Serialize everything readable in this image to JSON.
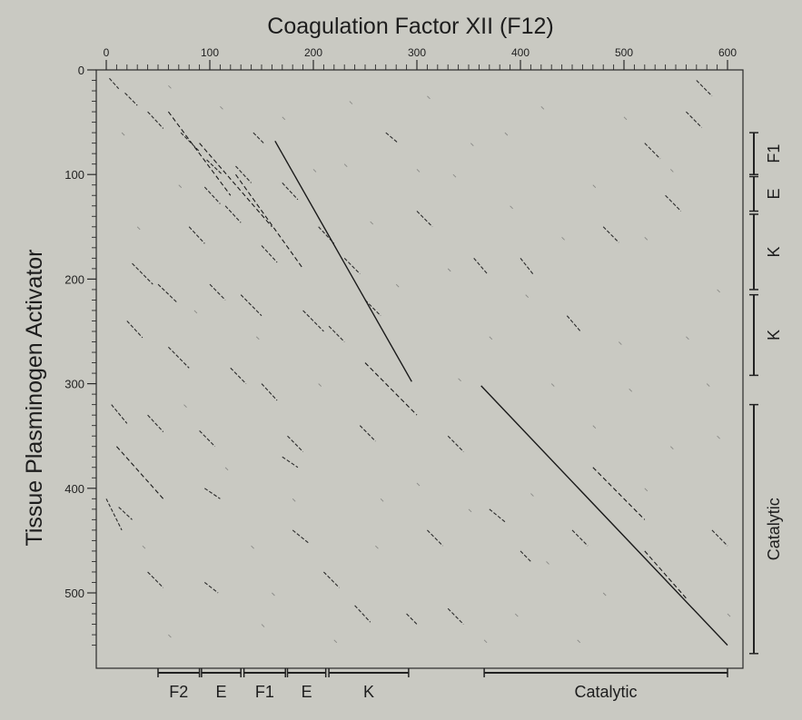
{
  "chart_data": {
    "type": "scatter",
    "subtype": "dot-plot",
    "title": "Coagulation Factor XII  (F12)",
    "xlabel": "",
    "ylabel": "Tissue Plasminogen Activator",
    "xlim": [
      0,
      610
    ],
    "ylim": [
      560,
      0
    ],
    "x_ticks": [
      0,
      100,
      200,
      300,
      400,
      500,
      600
    ],
    "y_ticks": [
      0,
      100,
      200,
      300,
      400,
      500
    ],
    "grid": false,
    "x_domains": [
      {
        "label": "F2",
        "start": 50,
        "end": 90
      },
      {
        "label": "E",
        "start": 92,
        "end": 130
      },
      {
        "label": "F1",
        "start": 133,
        "end": 173
      },
      {
        "label": "E",
        "start": 175,
        "end": 212
      },
      {
        "label": "K",
        "start": 215,
        "end": 292
      },
      {
        "label": "Catalytic",
        "start": 365,
        "end": 600
      }
    ],
    "y_domains": [
      {
        "label": "F1",
        "start": 60,
        "end": 100
      },
      {
        "label": "E",
        "start": 102,
        "end": 135
      },
      {
        "label": "K",
        "start": 138,
        "end": 210
      },
      {
        "label": "K",
        "start": 215,
        "end": 292
      },
      {
        "label": "Catalytic",
        "start": 320,
        "end": 558
      }
    ],
    "diagonals": [
      {
        "x": [
          163,
          295
        ],
        "y": [
          68,
          298
        ]
      },
      {
        "x": [
          362,
          600
        ],
        "y": [
          302,
          550
        ]
      },
      {
        "x": [
          125,
          190
        ],
        "y": [
          100,
          190
        ]
      },
      {
        "x": [
          90,
          160
        ],
        "y": [
          70,
          150
        ]
      },
      {
        "x": [
          60,
          120
        ],
        "y": [
          40,
          120
        ]
      },
      {
        "x": [
          250,
          300
        ],
        "y": [
          280,
          330
        ]
      },
      {
        "x": [
          520,
          560
        ],
        "y": [
          460,
          505
        ]
      },
      {
        "x": [
          470,
          520
        ],
        "y": [
          380,
          430
        ]
      },
      {
        "x": [
          10,
          55
        ],
        "y": [
          360,
          410
        ]
      }
    ],
    "segments": [
      {
        "x": [
          3,
          12
        ],
        "y": [
          8,
          18
        ]
      },
      {
        "x": [
          18,
          30
        ],
        "y": [
          22,
          34
        ]
      },
      {
        "x": [
          40,
          55
        ],
        "y": [
          40,
          56
        ]
      },
      {
        "x": [
          72,
          90
        ],
        "y": [
          60,
          78
        ]
      },
      {
        "x": [
          97,
          112
        ],
        "y": [
          86,
          100
        ]
      },
      {
        "x": [
          125,
          140
        ],
        "y": [
          92,
          108
        ]
      },
      {
        "x": [
          142,
          152
        ],
        "y": [
          60,
          70
        ]
      },
      {
        "x": [
          95,
          110
        ],
        "y": [
          112,
          128
        ]
      },
      {
        "x": [
          115,
          130
        ],
        "y": [
          130,
          146
        ]
      },
      {
        "x": [
          170,
          185
        ],
        "y": [
          108,
          124
        ]
      },
      {
        "x": [
          205,
          220
        ],
        "y": [
          150,
          166
        ]
      },
      {
        "x": [
          150,
          165
        ],
        "y": [
          168,
          184
        ]
      },
      {
        "x": [
          80,
          95
        ],
        "y": [
          150,
          166
        ]
      },
      {
        "x": [
          25,
          45
        ],
        "y": [
          185,
          205
        ]
      },
      {
        "x": [
          50,
          68
        ],
        "y": [
          205,
          222
        ]
      },
      {
        "x": [
          100,
          115
        ],
        "y": [
          205,
          220
        ]
      },
      {
        "x": [
          130,
          150
        ],
        "y": [
          215,
          235
        ]
      },
      {
        "x": [
          190,
          210
        ],
        "y": [
          230,
          250
        ]
      },
      {
        "x": [
          215,
          230
        ],
        "y": [
          245,
          260
        ]
      },
      {
        "x": [
          230,
          245
        ],
        "y": [
          180,
          195
        ]
      },
      {
        "x": [
          250,
          265
        ],
        "y": [
          220,
          235
        ]
      },
      {
        "x": [
          20,
          35
        ],
        "y": [
          240,
          256
        ]
      },
      {
        "x": [
          60,
          80
        ],
        "y": [
          265,
          285
        ]
      },
      {
        "x": [
          120,
          135
        ],
        "y": [
          285,
          300
        ]
      },
      {
        "x": [
          150,
          165
        ],
        "y": [
          300,
          316
        ]
      },
      {
        "x": [
          5,
          20
        ],
        "y": [
          320,
          338
        ]
      },
      {
        "x": [
          40,
          55
        ],
        "y": [
          330,
          346
        ]
      },
      {
        "x": [
          90,
          105
        ],
        "y": [
          345,
          360
        ]
      },
      {
        "x": [
          175,
          190
        ],
        "y": [
          350,
          365
        ]
      },
      {
        "x": [
          245,
          260
        ],
        "y": [
          340,
          355
        ]
      },
      {
        "x": [
          330,
          345
        ],
        "y": [
          350,
          365
        ]
      },
      {
        "x": [
          0,
          15
        ],
        "y": [
          410,
          440
        ]
      },
      {
        "x": [
          12,
          25
        ],
        "y": [
          418,
          430
        ]
      },
      {
        "x": [
          95,
          110
        ],
        "y": [
          400,
          410
        ]
      },
      {
        "x": [
          180,
          195
        ],
        "y": [
          440,
          452
        ]
      },
      {
        "x": [
          170,
          185
        ],
        "y": [
          370,
          380
        ]
      },
      {
        "x": [
          210,
          225
        ],
        "y": [
          480,
          495
        ]
      },
      {
        "x": [
          240,
          255
        ],
        "y": [
          512,
          528
        ]
      },
      {
        "x": [
          310,
          325
        ],
        "y": [
          440,
          455
        ]
      },
      {
        "x": [
          330,
          345
        ],
        "y": [
          515,
          530
        ]
      },
      {
        "x": [
          40,
          55
        ],
        "y": [
          480,
          495
        ]
      },
      {
        "x": [
          95,
          108
        ],
        "y": [
          490,
          500
        ]
      },
      {
        "x": [
          400,
          412
        ],
        "y": [
          180,
          195
        ]
      },
      {
        "x": [
          445,
          458
        ],
        "y": [
          235,
          250
        ]
      },
      {
        "x": [
          400,
          410
        ],
        "y": [
          460,
          470
        ]
      },
      {
        "x": [
          450,
          465
        ],
        "y": [
          440,
          455
        ]
      },
      {
        "x": [
          570,
          585
        ],
        "y": [
          10,
          25
        ]
      },
      {
        "x": [
          560,
          575
        ],
        "y": [
          40,
          55
        ]
      },
      {
        "x": [
          520,
          535
        ],
        "y": [
          70,
          85
        ]
      },
      {
        "x": [
          540,
          555
        ],
        "y": [
          120,
          135
        ]
      },
      {
        "x": [
          480,
          495
        ],
        "y": [
          150,
          165
        ]
      },
      {
        "x": [
          370,
          385
        ],
        "y": [
          420,
          432
        ]
      },
      {
        "x": [
          585,
          600
        ],
        "y": [
          440,
          455
        ]
      },
      {
        "x": [
          270,
          282
        ],
        "y": [
          60,
          70
        ]
      },
      {
        "x": [
          300,
          315
        ],
        "y": [
          135,
          150
        ]
      },
      {
        "x": [
          355,
          368
        ],
        "y": [
          180,
          195
        ]
      },
      {
        "x": [
          290,
          300
        ],
        "y": [
          520,
          530
        ]
      }
    ],
    "speckles": [
      [
        60,
        15
      ],
      [
        110,
        35
      ],
      [
        170,
        45
      ],
      [
        235,
        30
      ],
      [
        310,
        25
      ],
      [
        352,
        70
      ],
      [
        420,
        35
      ],
      [
        500,
        45
      ],
      [
        545,
        95
      ],
      [
        470,
        110
      ],
      [
        390,
        130
      ],
      [
        330,
        190
      ],
      [
        280,
        205
      ],
      [
        370,
        255
      ],
      [
        430,
        300
      ],
      [
        505,
        305
      ],
      [
        580,
        300
      ],
      [
        590,
        210
      ],
      [
        300,
        395
      ],
      [
        350,
        420
      ],
      [
        260,
        455
      ],
      [
        140,
        455
      ],
      [
        60,
        540
      ],
      [
        150,
        530
      ],
      [
        220,
        545
      ],
      [
        395,
        520
      ],
      [
        455,
        545
      ],
      [
        520,
        400
      ],
      [
        590,
        350
      ],
      [
        410,
        405
      ],
      [
        70,
        110
      ],
      [
        30,
        150
      ],
      [
        200,
        95
      ],
      [
        145,
        255
      ],
      [
        205,
        300
      ],
      [
        115,
        380
      ],
      [
        35,
        455
      ],
      [
        180,
        410
      ],
      [
        265,
        410
      ],
      [
        480,
        500
      ],
      [
        600,
        520
      ],
      [
        560,
        255
      ],
      [
        495,
        260
      ],
      [
        440,
        160
      ],
      [
        520,
        160
      ],
      [
        385,
        60
      ],
      [
        300,
        95
      ],
      [
        255,
        145
      ],
      [
        340,
        295
      ],
      [
        75,
        320
      ],
      [
        160,
        500
      ],
      [
        425,
        470
      ],
      [
        365,
        545
      ],
      [
        545,
        360
      ],
      [
        335,
        100
      ],
      [
        15,
        60
      ],
      [
        85,
        230
      ],
      [
        230,
        90
      ],
      [
        405,
        215
      ],
      [
        470,
        340
      ]
    ]
  }
}
